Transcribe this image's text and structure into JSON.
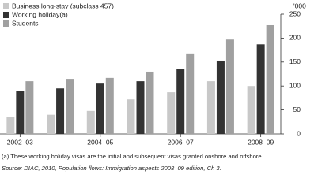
{
  "chart_data": {
    "type": "bar",
    "ylabel": "'000",
    "categories": [
      "2002–03",
      null,
      "2004–05",
      null,
      "2006–07",
      null,
      "2008–09"
    ],
    "series": [
      {
        "name": "Business long-stay (subclass 457)",
        "color": "#c8c8c8",
        "values": [
          35,
          40,
          48,
          72,
          87,
          110,
          100
        ]
      },
      {
        "name": "Working holiday(a)",
        "color": "#333333",
        "values": [
          90,
          95,
          105,
          110,
          135,
          153,
          187
        ]
      },
      {
        "name": "Students",
        "color": "#a0a0a0",
        "values": [
          110,
          115,
          117,
          130,
          168,
          197,
          227
        ]
      }
    ],
    "ylim": [
      0,
      250
    ],
    "yticks": [
      0,
      50,
      100,
      150,
      200,
      250
    ],
    "footnote": "(a) These working holiday visas are the initial and subsequent visas granted onshore and offshore.",
    "source": "Source: DIAC, 2010, Population flows: Immigration aspects 2008–09 edition, Ch 3."
  }
}
